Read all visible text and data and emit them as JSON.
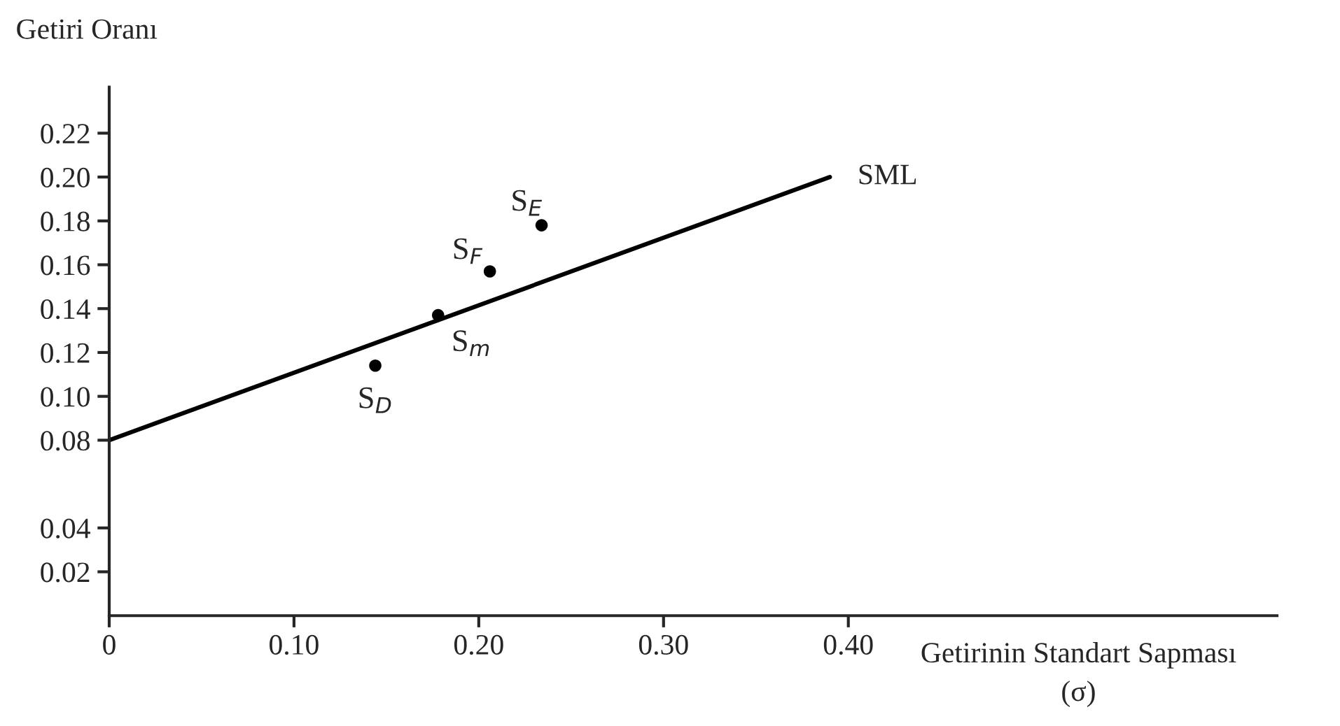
{
  "chart_data": {
    "type": "scatter",
    "xlabel": "Getirinin Standart Sapması\n(σ)",
    "ylabel": "Getiri Oranı",
    "series": [
      {
        "type": "line",
        "name": "SML",
        "color": "#000000",
        "x": [
          0,
          0.39
        ],
        "values": [
          0.08,
          0.2
        ]
      },
      {
        "marker": "circle",
        "color": "#000000",
        "x": [
          0.144,
          0.178,
          0.206,
          0.234
        ],
        "values": [
          0.114,
          0.137,
          0.157,
          0.178
        ]
      }
    ],
    "annotations": [
      {
        "text": "S$_{D}$",
        "x": 0.144,
        "y": 0.114
      },
      {
        "text": "S$_{m}$",
        "x": 0.178,
        "y": 0.137
      },
      {
        "text": "S$_{F}$",
        "x": 0.206,
        "y": 0.157
      },
      {
        "text": "S$_{E}$",
        "x": 0.234,
        "y": 0.178
      }
    ],
    "xlim": [
      0,
      0.632
    ],
    "ylim": [
      0,
      0.241
    ],
    "xticks": [
      0,
      {
        "value": 0.1,
        "label": "0.10"
      },
      {
        "value": 0.2,
        "label": "0.20"
      },
      {
        "value": 0.3,
        "label": "0.30"
      },
      {
        "value": 0.4,
        "label": "0.40"
      }
    ],
    "yticks": [
      0.02,
      0.04,
      {
        "value": 0.08,
        "label": "0.08"
      },
      {
        "value": 0.1,
        "label": "0.10"
      },
      {
        "value": 0.12,
        "label": "0.12"
      },
      {
        "value": 0.14,
        "label": "0.14"
      },
      {
        "value": 0.16,
        "label": "0.16"
      },
      {
        "value": 0.18,
        "label": "0.18"
      },
      {
        "value": 0.2,
        "label": "0.20"
      },
      {
        "value": 0.22,
        "label": "0.22"
      }
    ],
    "grid": false,
    "legend": false
  }
}
